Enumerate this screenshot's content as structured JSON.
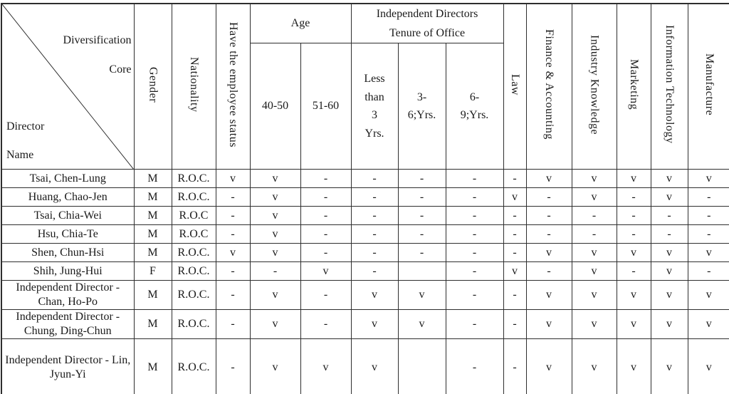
{
  "table": {
    "corner": {
      "top_lines": [
        "Diversification",
        "Core"
      ],
      "bottom_lines": [
        "Director",
        "Name"
      ]
    },
    "header": {
      "gender": "Gender",
      "nationality": "Nationality",
      "employee_status": "Have the employee status",
      "age_group": "Age",
      "age_columns": [
        "40-50",
        "51-60"
      ],
      "tenure_group_lines": [
        "Independent Directors",
        "Tenure of Office"
      ],
      "tenure_columns": [
        [
          "Less",
          "than",
          "3",
          "Yrs."
        ],
        [
          "3-",
          "6;Yrs."
        ],
        [
          "6-",
          "9;Yrs."
        ]
      ],
      "expertise_columns": [
        "Law",
        "Finance & Accounting",
        "Industry Knowledge",
        "Marketing",
        "Information Technology",
        "Manufacture"
      ]
    },
    "rows": [
      {
        "name": "Tsai, Chen-Lung",
        "gender": "M",
        "nationality": "R.O.C.",
        "values": [
          "v",
          "v",
          "-",
          "-",
          "-",
          "-",
          "-",
          "v",
          "v",
          "v",
          "v",
          "v"
        ]
      },
      {
        "name": "Huang, Chao-Jen",
        "gender": "M",
        "nationality": "R.O.C.",
        "values": [
          "-",
          "v",
          "-",
          "-",
          "-",
          "-",
          "v",
          "-",
          "v",
          "-",
          "v",
          "-"
        ]
      },
      {
        "name": "Tsai, Chia-Wei",
        "gender": "M",
        "nationality": "R.O.C",
        "values": [
          "-",
          "v",
          "-",
          "-",
          "-",
          "-",
          "-",
          "-",
          "-",
          "-",
          "-",
          "-"
        ]
      },
      {
        "name": "Hsu, Chia-Te",
        "gender": "M",
        "nationality": "R.O.C",
        "values": [
          "-",
          "v",
          "-",
          "-",
          "-",
          "-",
          "-",
          "-",
          "-",
          "-",
          "-",
          "-"
        ]
      },
      {
        "name": "Shen, Chun-Hsi",
        "gender": "M",
        "nationality": "R.O.C.",
        "values": [
          "v",
          "v",
          "-",
          "-",
          "-",
          "-",
          "-",
          "v",
          "v",
          "v",
          "v",
          "v"
        ]
      },
      {
        "name": "Shih, Jung-Hui",
        "gender": "F",
        "nationality": "R.O.C.",
        "values": [
          "-",
          "-",
          "v",
          "-",
          "",
          "-",
          "v",
          "-",
          "v",
          "-",
          "v",
          "-"
        ]
      },
      {
        "name": "Independent Director - Chan, Ho-Po",
        "gender": "M",
        "nationality": "R.O.C.",
        "values": [
          "-",
          "v",
          "-",
          "v",
          "v",
          "-",
          "-",
          "v",
          "v",
          "v",
          "v",
          "v"
        ]
      },
      {
        "name": "Independent Director - Chung, Ding-Chun",
        "gender": "M",
        "nationality": "R.O.C.",
        "values": [
          "-",
          "v",
          "-",
          "v",
          "v",
          "-",
          "-",
          "v",
          "v",
          "v",
          "v",
          "v"
        ]
      },
      {
        "name": "Independent Director - Lin, Jyun-Yi",
        "gender": "M",
        "nationality": "R.O.C.",
        "values": [
          "-",
          "v",
          "v",
          "v",
          "",
          "-",
          "-",
          "v",
          "v",
          "v",
          "v",
          "v"
        ]
      }
    ]
  }
}
